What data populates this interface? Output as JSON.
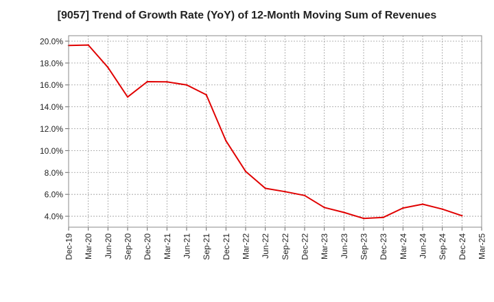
{
  "chart_data": {
    "type": "line",
    "title": "[9057]  Trend of Growth Rate (YoY) of 12-Month Moving Sum of Revenues",
    "xlabel": "",
    "ylabel": "",
    "x_ticks": [
      "Dec-19",
      "Mar-20",
      "Jun-20",
      "Sep-20",
      "Dec-20",
      "Mar-21",
      "Jun-21",
      "Sep-21",
      "Dec-21",
      "Mar-22",
      "Jun-22",
      "Sep-22",
      "Dec-22",
      "Mar-23",
      "Jun-23",
      "Sep-23",
      "Dec-23",
      "Mar-24",
      "Jun-24",
      "Sep-24",
      "Dec-24",
      "Mar-25"
    ],
    "y_ticks": [
      "4.0%",
      "6.0%",
      "8.0%",
      "10.0%",
      "12.0%",
      "14.0%",
      "16.0%",
      "18.0%",
      "20.0%"
    ],
    "ylim": [
      3.0,
      20.5
    ],
    "grid": true,
    "line_color": "#e00000",
    "series": [
      {
        "x": [
          "Dec-19",
          "Mar-20",
          "Jun-20",
          "Sep-20",
          "Dec-20",
          "Mar-21",
          "Jun-21",
          "Sep-21",
          "Dec-21",
          "Mar-22",
          "Jun-22",
          "Sep-22",
          "Dec-22",
          "Mar-23",
          "Jun-23",
          "Sep-23",
          "Dec-23",
          "Mar-24",
          "Jun-24",
          "Sep-24",
          "Dec-24"
        ],
        "values": [
          19.6,
          19.65,
          17.6,
          14.9,
          16.3,
          16.28,
          16.0,
          15.1,
          10.9,
          8.1,
          6.55,
          6.25,
          5.9,
          4.8,
          4.35,
          3.8,
          3.9,
          4.75,
          5.1,
          4.65,
          4.05
        ]
      }
    ]
  }
}
